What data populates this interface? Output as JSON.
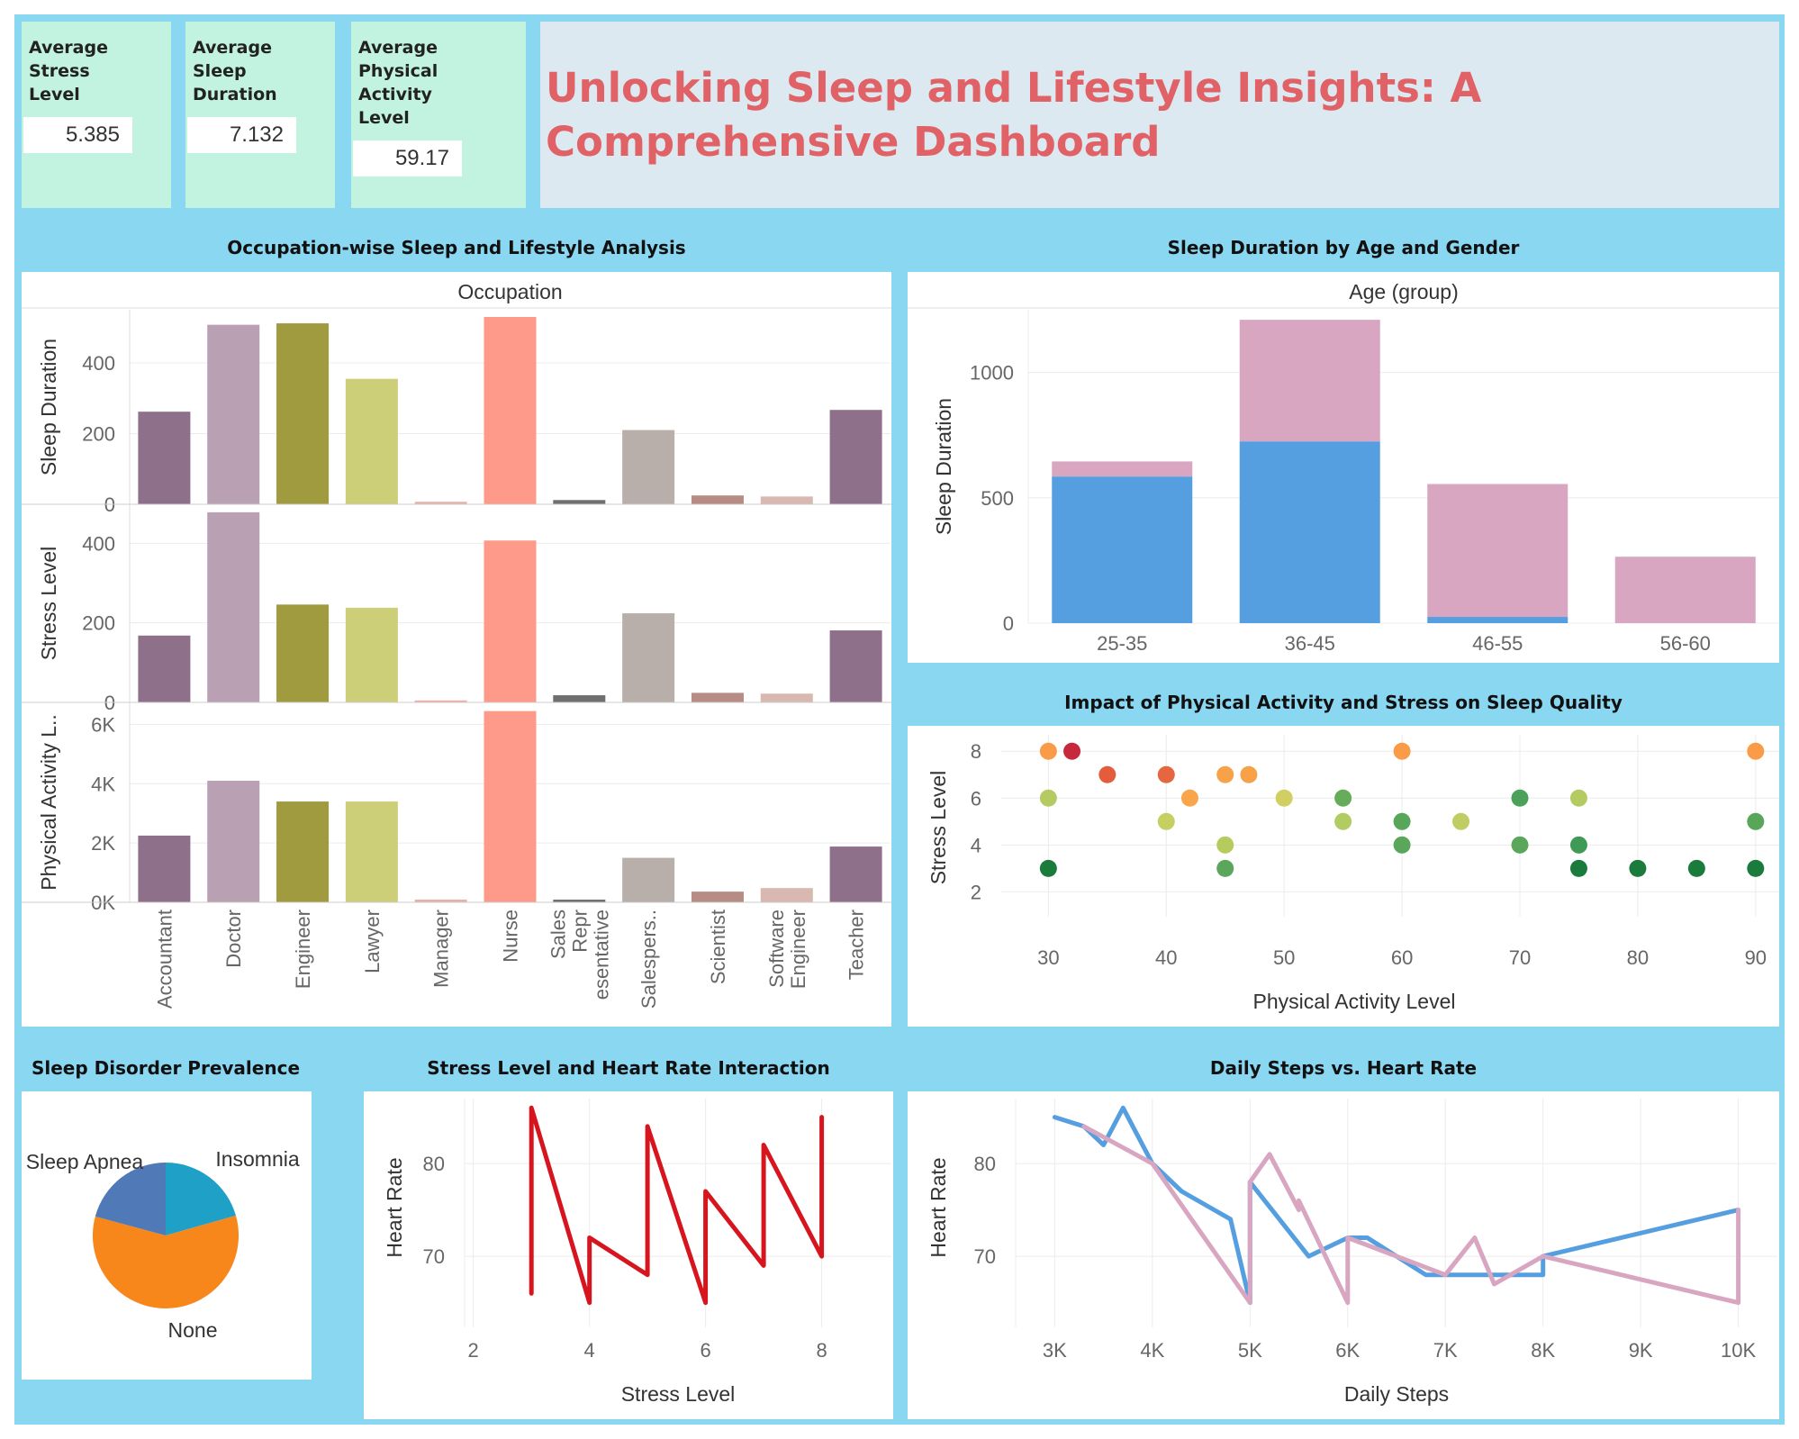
{
  "kpis": [
    {
      "label": "Average Stress Level",
      "lines": [
        "Average",
        "Stress",
        "Level"
      ],
      "value": "5.385"
    },
    {
      "label": "Average Sleep Duration",
      "lines": [
        "Average",
        "Sleep",
        "Duration"
      ],
      "value": "7.132"
    },
    {
      "label": "Average Physical Activity Level",
      "lines": [
        "Average",
        "Physical",
        "Activity",
        "Level"
      ],
      "value": "59.17"
    }
  ],
  "title": "Unlocking Sleep and Lifestyle Insights: A Comprehensive Dashboard",
  "sections": {
    "occupation": "Occupation-wise Sleep and Lifestyle Analysis",
    "age_gender": "Sleep Duration by Age and Gender",
    "impact": "Impact of Physical Activity and Stress on Sleep Quality",
    "disorder": "Sleep Disorder Prevalence",
    "stress_hr": "Stress Level and Heart Rate Interaction",
    "steps_hr": "Daily Steps vs. Heart Rate"
  },
  "colors": {
    "frame": "#8ad7f2",
    "kpi_bg": "#c1f3e0",
    "banner_bg": "#dce9f0",
    "title": "#e06266",
    "male": "#559fe0",
    "female": "#d8a6c1"
  },
  "chart_data": [
    {
      "type": "bar",
      "id": "occupation",
      "header": "Occupation",
      "categories": [
        "Accountant",
        "Doctor",
        "Engineer",
        "Lawyer",
        "Manager",
        "Nurse",
        "Sales Representative",
        "Salesperson",
        "Scientist",
        "Software Engineer",
        "Teacher"
      ],
      "tick_labels": [
        "Accountant",
        "Doctor",
        "Engineer",
        "Lawyer",
        "Manager",
        "Nurse",
        "Sales Repr esentative",
        "Salespers..",
        "Scientist",
        "Software Engineer",
        "Teacher"
      ],
      "bar_colors": [
        "#8f708a",
        "#b9a0b2",
        "#a09b3e",
        "#ccce78",
        "#e8b0a6",
        "#fe9a89",
        "#6f6f6f",
        "#b8aeaa",
        "#b68c84",
        "#d8b8b0",
        "#8f708a"
      ],
      "panels": [
        {
          "ylabel": "Sleep Duration",
          "ylim": [
            0,
            530
          ],
          "yticks": [
            0,
            200,
            400
          ],
          "ytick_labels": [
            "0",
            "200",
            "400"
          ],
          "values": [
            262,
            508,
            512,
            355,
            7,
            530,
            12,
            210,
            25,
            22,
            267
          ]
        },
        {
          "ylabel": "Stress Level",
          "ylim": [
            0,
            480
          ],
          "yticks": [
            0,
            200,
            400
          ],
          "ytick_labels": [
            "0",
            "200",
            "400"
          ],
          "values": [
            168,
            478,
            246,
            238,
            5,
            407,
            18,
            224,
            24,
            22,
            181
          ]
        },
        {
          "ylabel": "Physical Activity L..",
          "ylim": [
            0,
            6500
          ],
          "yticks": [
            0,
            2000,
            4000,
            6000
          ],
          "ytick_labels": [
            "0K",
            "2K",
            "4K",
            "6K"
          ],
          "values": [
            2250,
            4100,
            3400,
            3400,
            90,
            6450,
            90,
            1500,
            360,
            480,
            1880
          ]
        }
      ]
    },
    {
      "type": "bar",
      "id": "age_gender",
      "header": "Age (group)",
      "categories": [
        "25-35",
        "36-45",
        "46-55",
        "56-60"
      ],
      "series": [
        {
          "values": [
            585,
            725,
            25,
            0
          ]
        },
        {
          "values": [
            60,
            485,
            530,
            265
          ]
        }
      ],
      "ylabel": "Sleep Duration",
      "ylim": [
        0,
        1250
      ],
      "yticks": [
        0,
        500,
        1000
      ]
    },
    {
      "type": "scatter",
      "id": "impact",
      "xlabel": "Physical Activity Level",
      "ylabel": "Stress Level",
      "xlim": [
        26,
        92
      ],
      "ylim": [
        1.4,
        8.7
      ],
      "xticks": [
        30,
        40,
        50,
        60,
        70,
        80,
        90
      ],
      "yticks": [
        2,
        4,
        6,
        8
      ],
      "points": [
        {
          "x": 30,
          "y": 8,
          "c": "#f99b47"
        },
        {
          "x": 32,
          "y": 8,
          "c": "#c7283e"
        },
        {
          "x": 35,
          "y": 7,
          "c": "#e55c3d"
        },
        {
          "x": 40,
          "y": 7,
          "c": "#e66640"
        },
        {
          "x": 45,
          "y": 7,
          "c": "#f7a249"
        },
        {
          "x": 47,
          "y": 7,
          "c": "#f7a249"
        },
        {
          "x": 42,
          "y": 6,
          "c": "#f8a54c"
        },
        {
          "x": 30,
          "y": 6,
          "c": "#b3cb62"
        },
        {
          "x": 50,
          "y": 6,
          "c": "#d2cf62"
        },
        {
          "x": 55,
          "y": 6,
          "c": "#66ac5a"
        },
        {
          "x": 70,
          "y": 6,
          "c": "#4ba05a"
        },
        {
          "x": 75,
          "y": 6,
          "c": "#b3cb62"
        },
        {
          "x": 60,
          "y": 8,
          "c": "#f99b47"
        },
        {
          "x": 90,
          "y": 8,
          "c": "#f99b47"
        },
        {
          "x": 40,
          "y": 5,
          "c": "#c6cf62"
        },
        {
          "x": 55,
          "y": 5,
          "c": "#b2cb62"
        },
        {
          "x": 60,
          "y": 5,
          "c": "#58a659"
        },
        {
          "x": 65,
          "y": 5,
          "c": "#bfcd62"
        },
        {
          "x": 90,
          "y": 5,
          "c": "#58a659"
        },
        {
          "x": 45,
          "y": 4,
          "c": "#b6cb5e"
        },
        {
          "x": 60,
          "y": 4,
          "c": "#5aa75b"
        },
        {
          "x": 70,
          "y": 4,
          "c": "#5aa75b"
        },
        {
          "x": 75,
          "y": 4,
          "c": "#3e9a54"
        },
        {
          "x": 30,
          "y": 3,
          "c": "#1b7b3c"
        },
        {
          "x": 45,
          "y": 3,
          "c": "#5aa75b"
        },
        {
          "x": 75,
          "y": 3,
          "c": "#1b7b3c"
        },
        {
          "x": 80,
          "y": 3,
          "c": "#1b7b3c"
        },
        {
          "x": 85,
          "y": 3,
          "c": "#1b7b3c"
        },
        {
          "x": 90,
          "y": 3,
          "c": "#1b7b3c"
        }
      ]
    },
    {
      "type": "pie",
      "id": "disorder",
      "slices": [
        {
          "name": "Insomnia",
          "value": 20.6,
          "color": "#1fa1c7"
        },
        {
          "name": "None",
          "value": 58.6,
          "color": "#f7861b"
        },
        {
          "name": "Sleep Apnea",
          "value": 20.8,
          "color": "#5079b8"
        }
      ]
    },
    {
      "type": "line",
      "id": "stress_hr",
      "xlabel": "Stress Level",
      "ylabel": "Heart Rate",
      "xlim": [
        1.85,
        9.2
      ],
      "ylim": [
        63.5,
        87
      ],
      "xticks": [
        2,
        4,
        6,
        8
      ],
      "yticks": [
        70,
        80
      ],
      "color": "#d6151f",
      "points": [
        [
          3,
          66
        ],
        [
          3,
          86
        ],
        [
          4,
          65
        ],
        [
          4,
          72
        ],
        [
          5,
          68
        ],
        [
          5,
          84
        ],
        [
          6,
          65
        ],
        [
          6,
          77
        ],
        [
          7,
          69
        ],
        [
          7,
          82
        ],
        [
          8,
          70
        ],
        [
          8,
          85
        ]
      ]
    },
    {
      "type": "line",
      "id": "steps_hr",
      "xlabel": "Daily Steps",
      "ylabel": "Heart Rate",
      "xlim": [
        2600,
        10400
      ],
      "ylim": [
        63.5,
        87
      ],
      "xticks": [
        3000,
        4000,
        5000,
        6000,
        7000,
        8000,
        9000,
        10000
      ],
      "xtick_labels": [
        "3K",
        "4K",
        "5K",
        "6K",
        "7K",
        "8K",
        "9K",
        "10K"
      ],
      "yticks": [
        70,
        80
      ],
      "series": [
        {
          "color": "#559fe0",
          "points": [
            [
              3000,
              85
            ],
            [
              3300,
              84
            ],
            [
              3500,
              82
            ],
            [
              3700,
              86
            ],
            [
              4000,
              80
            ],
            [
              4300,
              77
            ],
            [
              4800,
              74
            ],
            [
              5000,
              65
            ],
            [
              5000,
              78
            ],
            [
              5600,
              70
            ],
            [
              6000,
              72
            ],
            [
              6200,
              72
            ],
            [
              6800,
              68
            ],
            [
              6800,
              68
            ],
            [
              7000,
              68
            ],
            [
              7300,
              68
            ],
            [
              8000,
              68
            ],
            [
              8000,
              70
            ],
            [
              10000,
              75
            ]
          ]
        },
        {
          "color": "#d8a6c1",
          "points": [
            [
              3300,
              84
            ],
            [
              4000,
              80
            ],
            [
              5000,
              65
            ],
            [
              5000,
              78
            ],
            [
              5200,
              81
            ],
            [
              5500,
              75
            ],
            [
              5500,
              76
            ],
            [
              6000,
              65
            ],
            [
              6000,
              72
            ],
            [
              7000,
              68
            ],
            [
              7300,
              72
            ],
            [
              7500,
              67
            ],
            [
              8000,
              70
            ],
            [
              10000,
              65
            ],
            [
              10000,
              75
            ]
          ]
        }
      ]
    }
  ]
}
